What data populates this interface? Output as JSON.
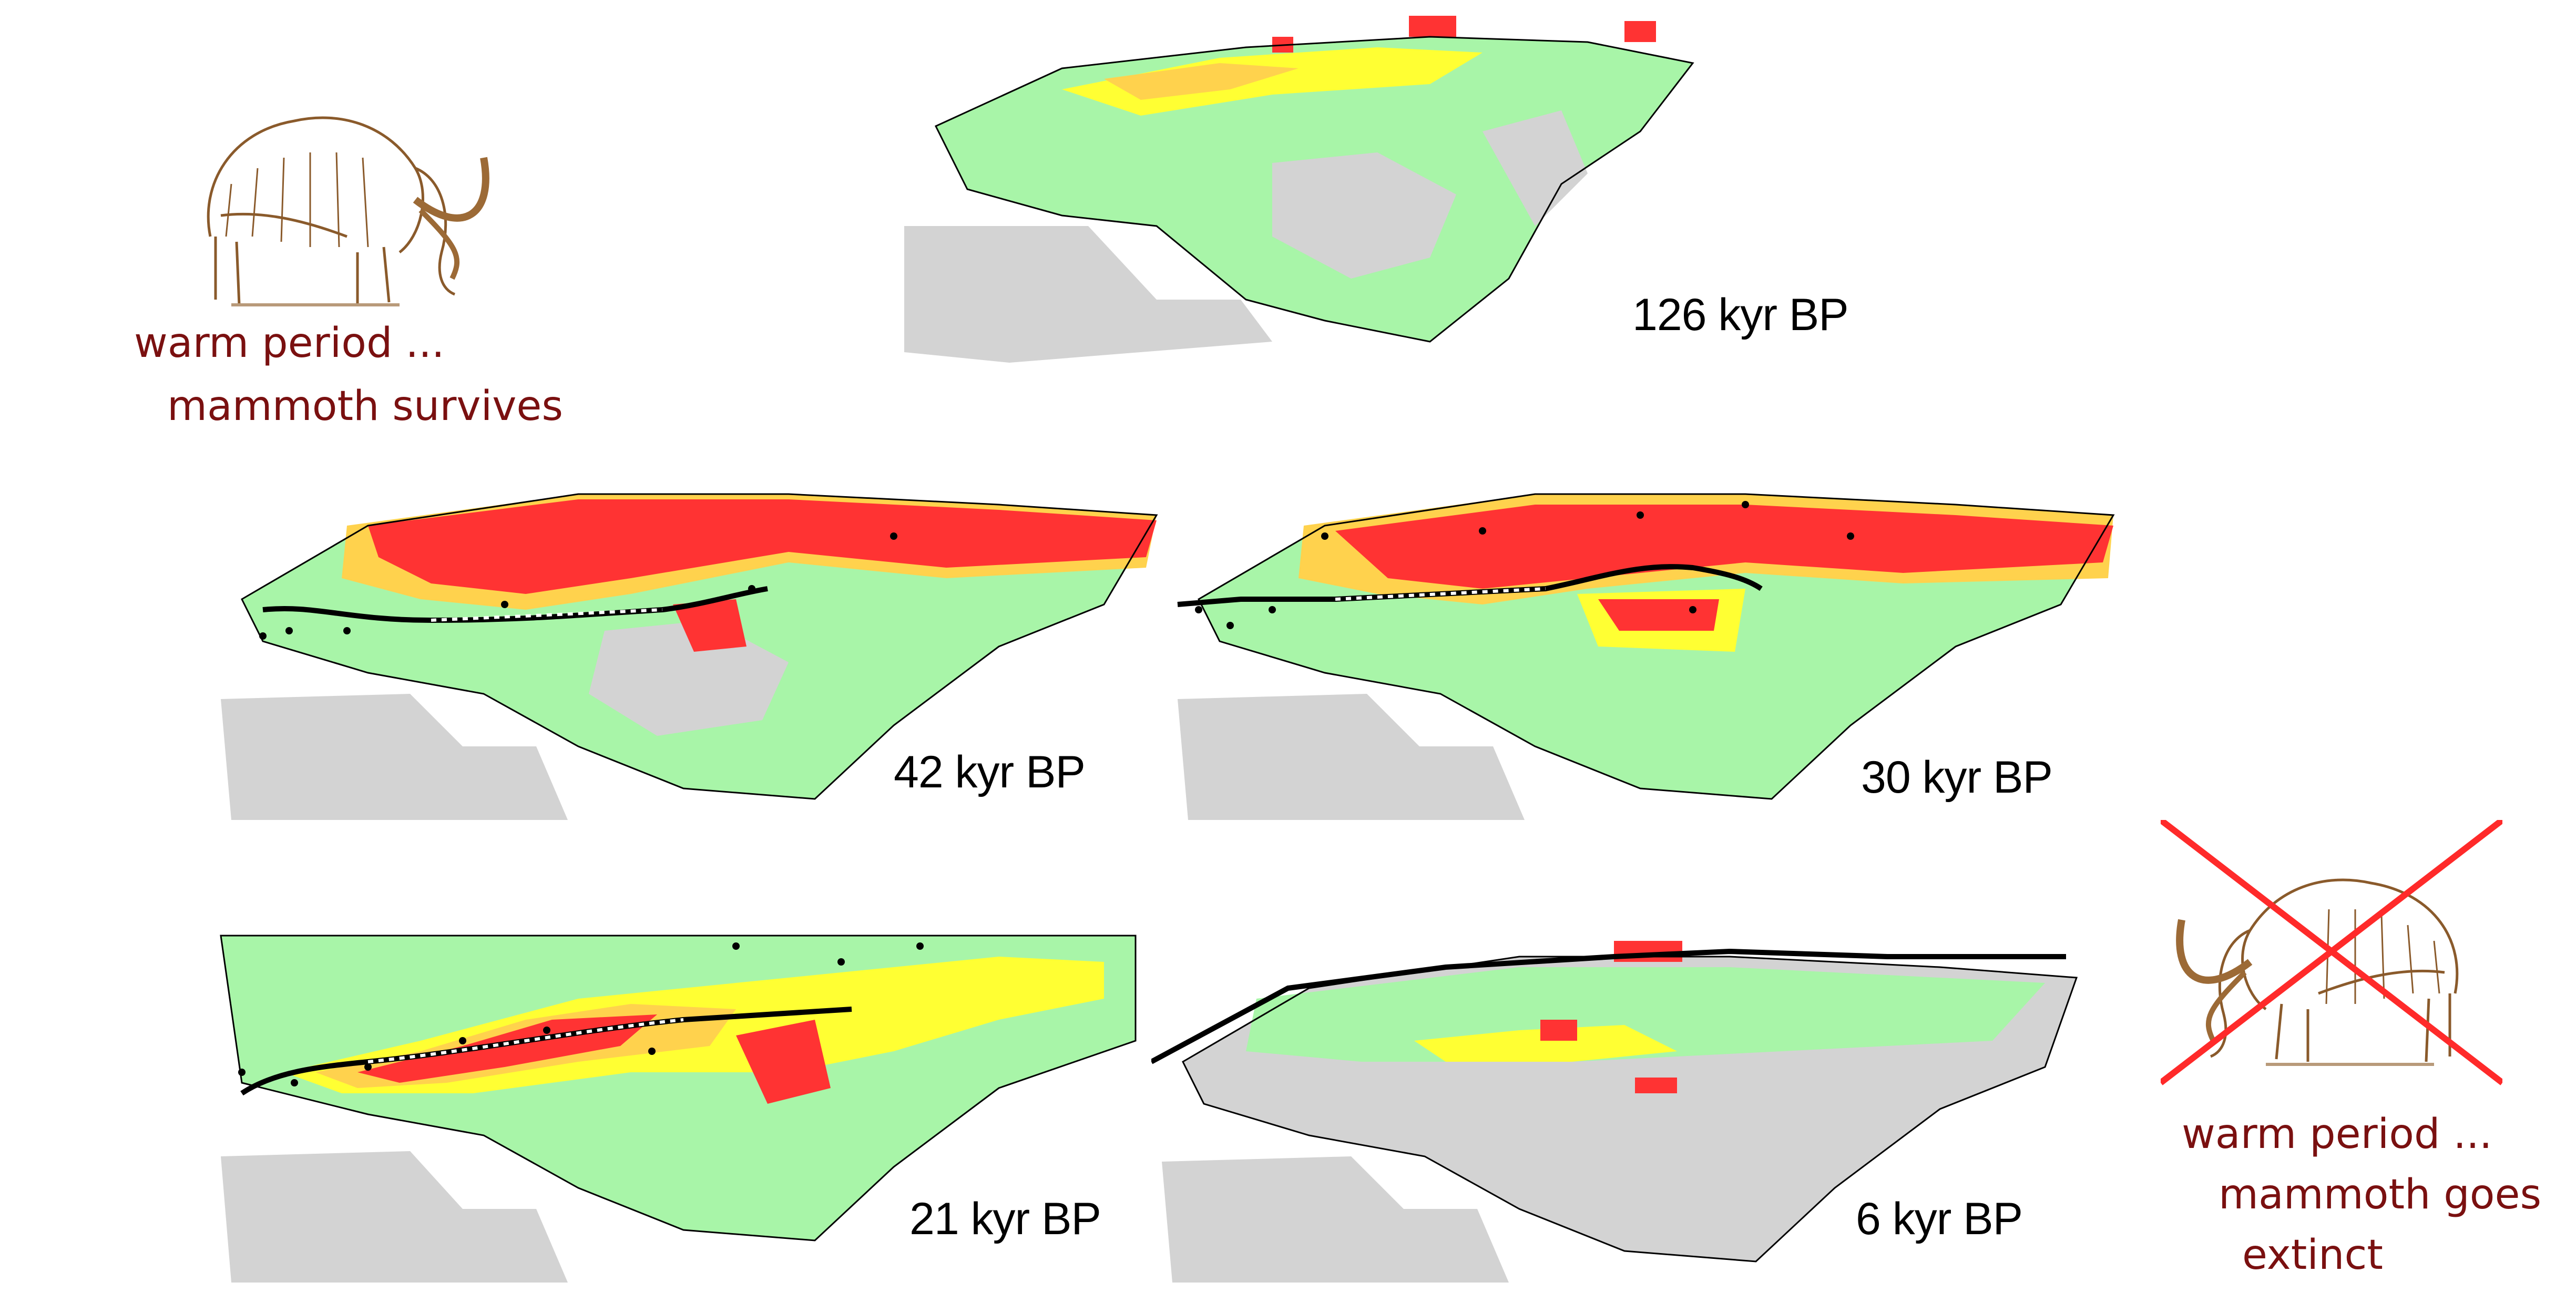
{
  "panels": [
    {
      "id": "p126",
      "label": "126 kyr BP"
    },
    {
      "id": "p42",
      "label": "42 kyr BP"
    },
    {
      "id": "p30",
      "label": "30 kyr BP"
    },
    {
      "id": "p21",
      "label": "21 kyr BP"
    },
    {
      "id": "p6",
      "label": "6 kyr BP"
    }
  ],
  "captions": {
    "left_line1": "warm period ...",
    "left_line2": "mammoth survives",
    "right_line1": "warm period ...",
    "right_line2": "mammoth goes",
    "right_line3": "extinct"
  },
  "colors": {
    "unsuitable": "#d3d3d3",
    "low": "#a8f5a8",
    "medium": "#ffff33",
    "high": "#ffd24d",
    "very_high": "#ff3333",
    "caption": "#7a1010",
    "cross": "#ff2a2a",
    "boundary": "#000000"
  },
  "icons": {
    "mammoth_left": "mammoth-icon",
    "mammoth_right": "crossed-mammoth-icon"
  }
}
